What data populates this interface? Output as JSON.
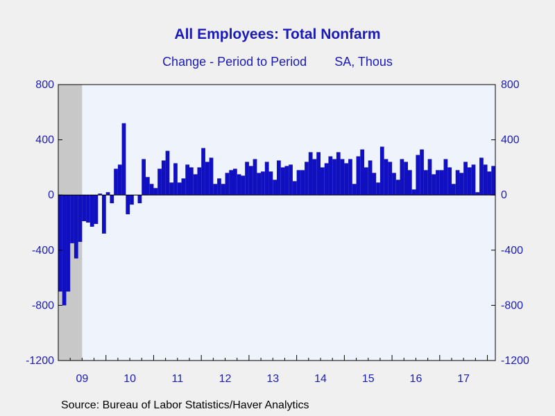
{
  "title": "All Employees: Total Nonfarm",
  "subtitle_left": "Change - Period to Period",
  "subtitle_right": "SA, Thous",
  "source": "Source:  Bureau of Labor Statistics/Haver Analytics",
  "colors": {
    "bar": "#1010c0",
    "plot_bg": "#eef3fc",
    "recession": "#c8c8c8",
    "axis": "#000000",
    "text": "#1a1ab8"
  },
  "chart_data": {
    "type": "bar",
    "title": "All Employees: Total Nonfarm",
    "subtitle": "Change - Period to Period    SA, Thous",
    "ylim": [
      -1200,
      800
    ],
    "yticks": [
      800,
      400,
      0,
      -400,
      -800,
      -1200
    ],
    "ytick_labels": [
      "800",
      "400",
      "0",
      "-400",
      "-800",
      "-1200"
    ],
    "x_start": "2009-01",
    "year_labels": [
      "09",
      "10",
      "11",
      "12",
      "13",
      "14",
      "15",
      "16",
      "17"
    ],
    "recession_shading": {
      "start": "2009-01",
      "end": "2009-06"
    },
    "grid": false,
    "values": [
      -700,
      -800,
      -700,
      -350,
      -460,
      -340,
      -190,
      -200,
      -230,
      -210,
      10,
      -280,
      20,
      -60,
      190,
      220,
      520,
      -140,
      -70,
      0,
      -60,
      260,
      130,
      80,
      50,
      190,
      250,
      320,
      90,
      230,
      90,
      120,
      220,
      200,
      150,
      200,
      340,
      240,
      270,
      80,
      120,
      80,
      160,
      180,
      190,
      150,
      140,
      240,
      210,
      260,
      160,
      170,
      240,
      170,
      110,
      250,
      200,
      210,
      220,
      100,
      180,
      180,
      240,
      310,
      260,
      310,
      200,
      230,
      280,
      260,
      310,
      260,
      230,
      260,
      80,
      280,
      330,
      200,
      250,
      160,
      90,
      350,
      260,
      240,
      160,
      110,
      260,
      240,
      180,
      40,
      290,
      330,
      180,
      260,
      150,
      180,
      180,
      260,
      200,
      80,
      180,
      160,
      240,
      200,
      220,
      20,
      270,
      220,
      170,
      210
    ]
  }
}
